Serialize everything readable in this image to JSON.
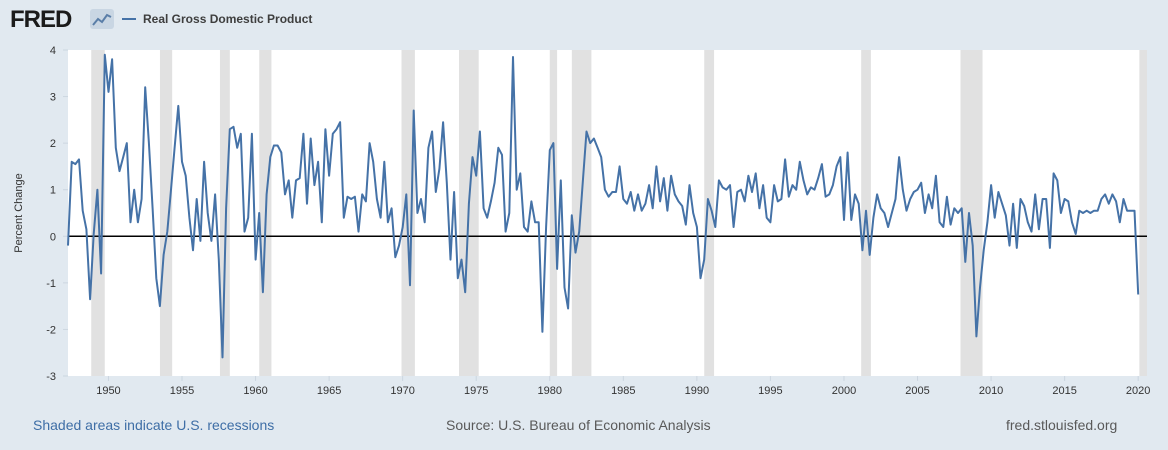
{
  "header": {
    "logo_text": "FRED",
    "logo_icon": "chart-trend-icon",
    "series_name": "Real Gross Domestic Product"
  },
  "footer": {
    "recession_note": "Shaded areas indicate U.S. recessions",
    "source": "Source: U.S. Bureau of Economic Analysis",
    "site": "fred.stlouisfed.org"
  },
  "colors": {
    "line": "#4572a7",
    "recession": "#e1e1e1",
    "background": "#e1e9f0",
    "plot": "#ffffff",
    "zero_line": "#000000"
  },
  "chart_data": {
    "type": "line",
    "ylabel": "Percent Change",
    "xlabel": "",
    "ylim": [
      -3,
      4
    ],
    "xlim": [
      1947.25,
      2020.6
    ],
    "yticks": [
      -3,
      -2,
      -1,
      0,
      1,
      2,
      3,
      4
    ],
    "xticks": [
      1950,
      1955,
      1960,
      1965,
      1970,
      1975,
      1980,
      1985,
      1990,
      1995,
      2000,
      2005,
      2010,
      2015,
      2020
    ],
    "zero_line": true,
    "grid": false,
    "recessions": [
      [
        1948.83,
        1949.75
      ],
      [
        1953.5,
        1954.33
      ],
      [
        1957.58,
        1958.25
      ],
      [
        1960.25,
        1961.08
      ],
      [
        1969.92,
        1970.83
      ],
      [
        1973.83,
        1975.17
      ],
      [
        1980.0,
        1980.5
      ],
      [
        1981.5,
        1982.83
      ],
      [
        1990.5,
        1991.17
      ],
      [
        2001.17,
        2001.83
      ],
      [
        2007.92,
        2009.42
      ],
      [
        2020.08,
        2020.6
      ]
    ],
    "series": [
      {
        "x_start": 1947.25,
        "x_step": 0.25,
        "values": [
          -0.2,
          1.6,
          1.55,
          1.65,
          0.55,
          0.15,
          -1.35,
          0.05,
          1.0,
          -0.8,
          3.9,
          3.1,
          3.8,
          1.9,
          1.4,
          1.7,
          2.0,
          0.3,
          1.0,
          0.3,
          0.8,
          3.2,
          2.0,
          0.6,
          -0.9,
          -1.5,
          -0.4,
          0.1,
          1.0,
          1.9,
          2.8,
          1.6,
          1.3,
          0.4,
          -0.3,
          0.8,
          -0.1,
          1.6,
          0.5,
          -0.1,
          0.9,
          -0.5,
          -2.6,
          0.6,
          2.3,
          2.35,
          1.9,
          2.2,
          0.1,
          0.4,
          2.2,
          -0.5,
          0.5,
          -1.2,
          0.9,
          1.7,
          1.95,
          1.95,
          1.8,
          0.9,
          1.2,
          0.4,
          1.2,
          1.25,
          2.2,
          0.7,
          2.1,
          1.1,
          1.6,
          0.3,
          2.3,
          1.3,
          2.2,
          2.3,
          2.45,
          0.4,
          0.85,
          0.8,
          0.85,
          0.1,
          0.9,
          0.75,
          2.0,
          1.6,
          0.8,
          0.4,
          1.6,
          0.3,
          0.6,
          -0.45,
          -0.2,
          0.2,
          0.9,
          -1.05,
          2.7,
          0.5,
          0.8,
          0.3,
          1.9,
          2.25,
          0.95,
          1.45,
          2.45,
          1.15,
          -0.5,
          0.95,
          -0.9,
          -0.5,
          -1.2,
          0.7,
          1.7,
          1.3,
          2.25,
          0.6,
          0.4,
          0.75,
          1.15,
          1.9,
          1.75,
          0.1,
          0.5,
          3.85,
          1.0,
          1.35,
          0.2,
          0.1,
          0.75,
          0.3,
          0.3,
          -2.05,
          0.2,
          1.85,
          2.0,
          -0.7,
          1.2,
          -1.1,
          -1.55,
          0.45,
          -0.35,
          0.1,
          1.2,
          2.25,
          2.0,
          2.1,
          1.9,
          1.7,
          1.0,
          0.85,
          0.95,
          0.95,
          1.5,
          0.8,
          0.7,
          0.95,
          0.55,
          0.9,
          0.55,
          0.7,
          1.1,
          0.6,
          1.5,
          0.75,
          1.25,
          0.55,
          1.3,
          0.9,
          0.75,
          0.65,
          0.25,
          1.1,
          0.5,
          0.2,
          -0.9,
          -0.5,
          0.8,
          0.55,
          0.2,
          1.2,
          1.05,
          1.0,
          1.1,
          0.2,
          0.95,
          1.0,
          0.75,
          1.3,
          0.95,
          1.35,
          0.6,
          1.1,
          0.4,
          0.3,
          1.1,
          0.75,
          0.8,
          1.65,
          0.85,
          1.1,
          1.0,
          1.6,
          1.2,
          0.9,
          1.05,
          1.0,
          1.25,
          1.55,
          0.85,
          0.9,
          1.1,
          1.5,
          1.7,
          0.35,
          1.8,
          0.35,
          0.9,
          0.7,
          -0.3,
          0.55,
          -0.4,
          0.4,
          0.9,
          0.6,
          0.5,
          0.2,
          0.5,
          0.8,
          1.7,
          1.0,
          0.55,
          0.8,
          0.95,
          1.0,
          1.15,
          0.5,
          0.9,
          0.6,
          1.3,
          0.3,
          0.2,
          0.85,
          0.25,
          0.6,
          0.5,
          0.6,
          -0.55,
          0.5,
          -0.2,
          -2.15,
          -1.1,
          -0.3,
          0.3,
          1.1,
          0.4,
          0.95,
          0.7,
          0.45,
          -0.2,
          0.7,
          -0.25,
          0.8,
          0.65,
          0.3,
          0.1,
          0.9,
          0.15,
          0.8,
          0.8,
          -0.25,
          1.35,
          1.2,
          0.5,
          0.8,
          0.75,
          0.3,
          0.05,
          0.55,
          0.5,
          0.55,
          0.5,
          0.55,
          0.55,
          0.8,
          0.9,
          0.7,
          0.9,
          0.75,
          0.3,
          0.8,
          0.55,
          0.55,
          0.55,
          -1.25
        ]
      }
    ]
  }
}
